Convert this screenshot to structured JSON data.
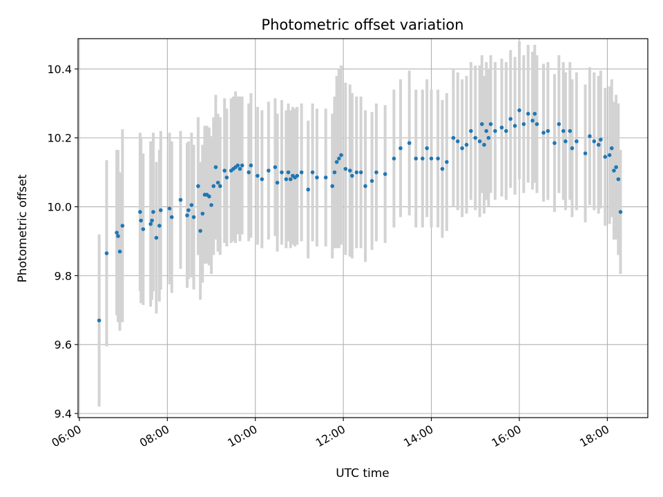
{
  "chart_data": {
    "type": "scatter",
    "title": "Photometric offset variation",
    "xlabel": "UTC time",
    "ylabel": "Photometric offset",
    "x_unit": "hours UTC",
    "xlim": [
      5.97,
      18.92
    ],
    "ylim": [
      9.388,
      10.488
    ],
    "x_ticks": [
      {
        "value": 6,
        "label": "06:00"
      },
      {
        "value": 8,
        "label": "08:00"
      },
      {
        "value": 10,
        "label": "10:00"
      },
      {
        "value": 12,
        "label": "12:00"
      },
      {
        "value": 14,
        "label": "14:00"
      },
      {
        "value": 16,
        "label": "16:00"
      },
      {
        "value": 18,
        "label": "18:00"
      }
    ],
    "y_ticks": [
      {
        "value": 9.4,
        "label": "9.4"
      },
      {
        "value": 9.6,
        "label": "9.6"
      },
      {
        "value": 9.8,
        "label": "9.8"
      },
      {
        "value": 10.0,
        "label": "10.0"
      },
      {
        "value": 10.2,
        "label": "10.2"
      },
      {
        "value": 10.4,
        "label": "10.4"
      }
    ],
    "grid": true,
    "colors": {
      "points": "#1f77b4",
      "errorbars": "#d3d3d3",
      "grid": "#b0b0b0"
    },
    "points": [
      [
        6.45,
        9.67,
        0.25
      ],
      [
        6.62,
        9.865,
        0.27
      ],
      [
        6.85,
        9.925,
        0.24
      ],
      [
        6.88,
        9.915,
        0.25
      ],
      [
        6.92,
        9.87,
        0.23
      ],
      [
        6.98,
        9.945,
        0.28
      ],
      [
        7.38,
        9.985,
        0.23
      ],
      [
        7.4,
        9.96,
        0.24
      ],
      [
        7.45,
        9.935,
        0.22
      ],
      [
        7.62,
        9.95,
        0.24
      ],
      [
        7.65,
        9.96,
        0.23
      ],
      [
        7.68,
        9.985,
        0.23
      ],
      [
        7.75,
        9.91,
        0.22
      ],
      [
        7.82,
        9.945,
        0.22
      ],
      [
        7.85,
        9.99,
        0.23
      ],
      [
        8.05,
        9.995,
        0.22
      ],
      [
        8.1,
        9.97,
        0.22
      ],
      [
        8.3,
        10.02,
        0.2
      ],
      [
        8.45,
        9.975,
        0.21
      ],
      [
        8.48,
        9.99,
        0.2
      ],
      [
        8.55,
        10.005,
        0.21
      ],
      [
        8.6,
        9.97,
        0.21
      ],
      [
        8.7,
        10.06,
        0.2
      ],
      [
        8.75,
        9.93,
        0.2
      ],
      [
        8.8,
        9.98,
        0.2
      ],
      [
        8.85,
        10.035,
        0.2
      ],
      [
        8.9,
        10.035,
        0.2
      ],
      [
        8.95,
        10.03,
        0.2
      ],
      [
        9.0,
        10.005,
        0.2
      ],
      [
        9.05,
        10.06,
        0.2
      ],
      [
        9.1,
        10.115,
        0.21
      ],
      [
        9.15,
        10.07,
        0.2
      ],
      [
        9.2,
        10.06,
        0.2
      ],
      [
        9.3,
        10.105,
        0.21
      ],
      [
        9.35,
        10.085,
        0.2
      ],
      [
        9.45,
        10.105,
        0.21
      ],
      [
        9.5,
        10.11,
        0.21
      ],
      [
        9.55,
        10.115,
        0.22
      ],
      [
        9.6,
        10.12,
        0.2
      ],
      [
        9.65,
        10.11,
        0.21
      ],
      [
        9.7,
        10.12,
        0.2
      ],
      [
        9.85,
        10.1,
        0.2
      ],
      [
        9.9,
        10.12,
        0.21
      ],
      [
        10.05,
        10.09,
        0.2
      ],
      [
        10.15,
        10.08,
        0.2
      ],
      [
        10.3,
        10.105,
        0.2
      ],
      [
        10.45,
        10.115,
        0.2
      ],
      [
        10.5,
        10.07,
        0.2
      ],
      [
        10.6,
        10.1,
        0.21
      ],
      [
        10.7,
        10.08,
        0.2
      ],
      [
        10.75,
        10.1,
        0.2
      ],
      [
        10.8,
        10.08,
        0.2
      ],
      [
        10.85,
        10.09,
        0.2
      ],
      [
        10.9,
        10.085,
        0.2
      ],
      [
        10.95,
        10.09,
        0.2
      ],
      [
        11.05,
        10.1,
        0.2
      ],
      [
        11.2,
        10.05,
        0.2
      ],
      [
        11.3,
        10.1,
        0.2
      ],
      [
        11.4,
        10.085,
        0.2
      ],
      [
        11.6,
        10.085,
        0.2
      ],
      [
        11.75,
        10.06,
        0.21
      ],
      [
        11.8,
        10.1,
        0.22
      ],
      [
        11.85,
        10.13,
        0.25
      ],
      [
        11.9,
        10.14,
        0.26
      ],
      [
        11.95,
        10.15,
        0.26
      ],
      [
        12.05,
        10.11,
        0.25
      ],
      [
        12.15,
        10.105,
        0.25
      ],
      [
        12.2,
        10.09,
        0.24
      ],
      [
        12.3,
        10.1,
        0.22
      ],
      [
        12.4,
        10.1,
        0.22
      ],
      [
        12.5,
        10.06,
        0.22
      ],
      [
        12.65,
        10.075,
        0.2
      ],
      [
        12.75,
        10.1,
        0.2
      ],
      [
        12.95,
        10.095,
        0.2
      ],
      [
        13.15,
        10.14,
        0.2
      ],
      [
        13.3,
        10.17,
        0.2
      ],
      [
        13.5,
        10.185,
        0.21
      ],
      [
        13.65,
        10.14,
        0.2
      ],
      [
        13.8,
        10.14,
        0.2
      ],
      [
        13.9,
        10.17,
        0.2
      ],
      [
        14.0,
        10.14,
        0.2
      ],
      [
        14.15,
        10.14,
        0.2
      ],
      [
        14.25,
        10.11,
        0.2
      ],
      [
        14.35,
        10.13,
        0.2
      ],
      [
        14.5,
        10.2,
        0.2
      ],
      [
        14.6,
        10.19,
        0.2
      ],
      [
        14.7,
        10.17,
        0.2
      ],
      [
        14.8,
        10.18,
        0.2
      ],
      [
        14.9,
        10.22,
        0.2
      ],
      [
        15.0,
        10.2,
        0.21
      ],
      [
        15.1,
        10.19,
        0.22
      ],
      [
        15.15,
        10.24,
        0.2
      ],
      [
        15.2,
        10.18,
        0.2
      ],
      [
        15.25,
        10.22,
        0.2
      ],
      [
        15.3,
        10.2,
        0.2
      ],
      [
        15.35,
        10.24,
        0.2
      ],
      [
        15.45,
        10.22,
        0.2
      ],
      [
        15.6,
        10.23,
        0.2
      ],
      [
        15.7,
        10.22,
        0.2
      ],
      [
        15.8,
        10.255,
        0.2
      ],
      [
        15.9,
        10.235,
        0.2
      ],
      [
        16.0,
        10.28,
        0.2
      ],
      [
        16.1,
        10.24,
        0.2
      ],
      [
        16.2,
        10.27,
        0.2
      ],
      [
        16.3,
        10.25,
        0.2
      ],
      [
        16.35,
        10.27,
        0.2
      ],
      [
        16.4,
        10.24,
        0.2
      ],
      [
        16.55,
        10.215,
        0.2
      ],
      [
        16.65,
        10.22,
        0.2
      ],
      [
        16.8,
        10.185,
        0.2
      ],
      [
        16.9,
        10.24,
        0.2
      ],
      [
        17.0,
        10.22,
        0.2
      ],
      [
        17.05,
        10.19,
        0.2
      ],
      [
        17.15,
        10.22,
        0.2
      ],
      [
        17.2,
        10.17,
        0.2
      ],
      [
        17.3,
        10.19,
        0.2
      ],
      [
        17.5,
        10.155,
        0.2
      ],
      [
        17.6,
        10.205,
        0.2
      ],
      [
        17.7,
        10.19,
        0.2
      ],
      [
        17.8,
        10.18,
        0.2
      ],
      [
        17.85,
        10.195,
        0.2
      ],
      [
        17.95,
        10.145,
        0.2
      ],
      [
        18.05,
        10.15,
        0.2
      ],
      [
        18.1,
        10.17,
        0.2
      ],
      [
        18.15,
        10.105,
        0.2
      ],
      [
        18.2,
        10.115,
        0.21
      ],
      [
        18.25,
        10.08,
        0.22
      ],
      [
        18.3,
        9.985,
        0.18
      ]
    ]
  }
}
